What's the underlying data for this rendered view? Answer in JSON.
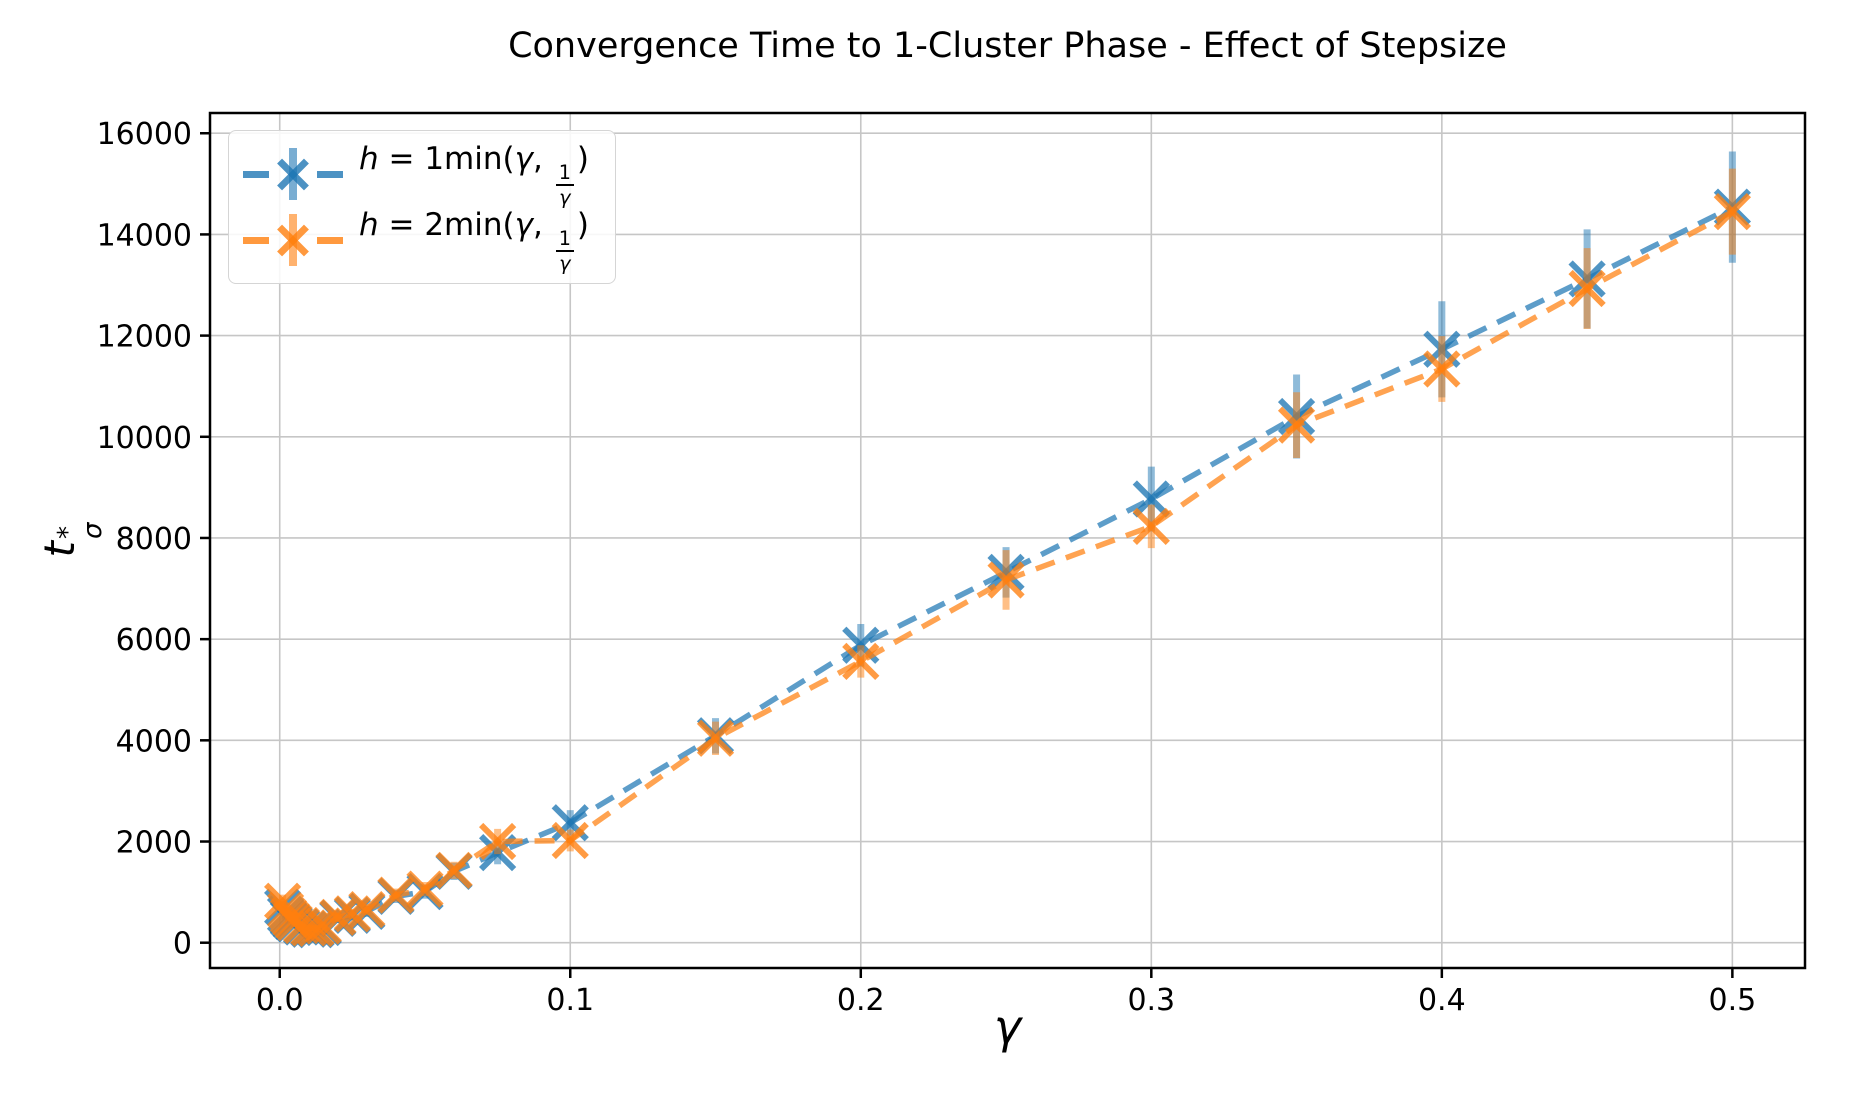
{
  "figure": {
    "title": "Convergence Time to 1-Cluster Phase - Effect of Stepsize"
  },
  "chart_data": {
    "type": "line",
    "title": "Convergence Time to 1-Cluster Phase - Effect of Stepsize",
    "xlabel": "γ",
    "ylabel": {
      "base": "t",
      "sup": "*",
      "sub": "σ"
    },
    "grid": true,
    "legend_position": "upper left",
    "axes": {
      "xlim": [
        -0.024,
        0.525
      ],
      "ylim": [
        -500,
        16400
      ],
      "x_ticks": {
        "values": [
          0.0,
          0.1,
          0.2,
          0.3,
          0.4,
          0.5
        ],
        "labels": [
          "0.0",
          "0.1",
          "0.2",
          "0.3",
          "0.4",
          "0.5"
        ]
      },
      "y_ticks": {
        "values": [
          0,
          2000,
          4000,
          6000,
          8000,
          10000,
          12000,
          14000,
          16000
        ],
        "labels": [
          "0",
          "2000",
          "4000",
          "6000",
          "8000",
          "10000",
          "12000",
          "14000",
          "16000"
        ]
      }
    },
    "x": [
      0.001,
      0.002,
      0.003,
      0.004,
      0.005,
      0.0075,
      0.01,
      0.0125,
      0.015,
      0.02,
      0.025,
      0.03,
      0.04,
      0.05,
      0.06,
      0.075,
      0.1,
      0.15,
      0.2,
      0.25,
      0.3,
      0.35,
      0.4,
      0.45,
      0.5
    ],
    "series": [
      {
        "name": "h = 1min(γ, 1/γ)",
        "color": "#1f77b4",
        "linestyle": "dashed",
        "marker": "x",
        "y": [
          700,
          560,
          480,
          420,
          370,
          310,
          265,
          255,
          300,
          480,
          540,
          620,
          915,
          1010,
          1410,
          1780,
          2370,
          4090,
          5880,
          7320,
          8770,
          10400,
          11730,
          13120,
          14540
        ],
        "yerr": [
          120,
          100,
          90,
          80,
          80,
          70,
          70,
          70,
          80,
          90,
          100,
          110,
          130,
          140,
          170,
          230,
          250,
          350,
          420,
          500,
          640,
          830,
          950,
          980,
          1100
        ]
      },
      {
        "name": "h = 2min(γ, 1/γ)",
        "color": "#ff7f0e",
        "linestyle": "dashed",
        "marker": "x",
        "y": [
          820,
          640,
          530,
          460,
          400,
          340,
          290,
          280,
          330,
          500,
          570,
          655,
          940,
          1060,
          1430,
          2000,
          2020,
          4040,
          5560,
          7170,
          8230,
          10230,
          11340,
          12930,
          14450
        ],
        "yerr": [
          130,
          110,
          95,
          85,
          80,
          75,
          70,
          70,
          80,
          90,
          100,
          110,
          130,
          140,
          170,
          250,
          215,
          330,
          320,
          590,
          430,
          650,
          650,
          800,
          850
        ]
      }
    ],
    "style": {
      "background": "#ffffff",
      "grid_color": "#c6c6c6",
      "spine_color": "#000000",
      "line_alpha": 0.72,
      "marker_alpha": 0.78,
      "err_alpha": 0.5
    }
  },
  "legend": {
    "entries": [
      {
        "h": "h",
        "mid": " = 1min(",
        "gamma": "γ",
        "comma": ", ",
        "num": "1",
        "den": "γ",
        "close": ")"
      },
      {
        "h": "h",
        "mid": " = 2min(",
        "gamma": "γ",
        "comma": ", ",
        "num": "1",
        "den": "γ",
        "close": ")"
      }
    ]
  }
}
